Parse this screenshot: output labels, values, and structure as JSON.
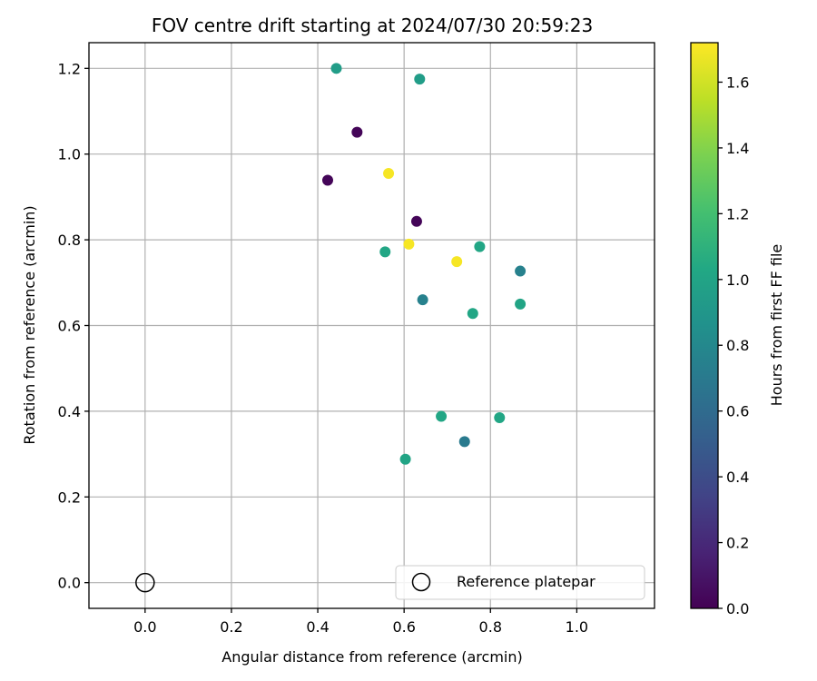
{
  "chart_data": {
    "type": "scatter",
    "title": "FOV centre drift starting at 2024/07/30 20:59:23",
    "xlabel": "Angular distance from reference (arcmin)",
    "ylabel": "Rotation from reference (arcmin)",
    "colorbar_label": "Hours from first FF file",
    "xlim": [
      -0.13,
      1.18
    ],
    "ylim": [
      -0.06,
      1.26
    ],
    "x_ticks": [
      0.0,
      0.2,
      0.4,
      0.6,
      0.8,
      1.0
    ],
    "x_tick_labels": [
      "0.0",
      "0.2",
      "0.4",
      "0.6",
      "0.8",
      "1.0"
    ],
    "y_ticks": [
      0.0,
      0.2,
      0.4,
      0.6,
      0.8,
      1.0,
      1.2
    ],
    "y_tick_labels": [
      "0.0",
      "0.2",
      "0.4",
      "0.6",
      "0.8",
      "1.0",
      "1.2"
    ],
    "colorbar_range": [
      0.0,
      1.72
    ],
    "colorbar_ticks": [
      0.0,
      0.2,
      0.4,
      0.6,
      0.8,
      1.0,
      1.2,
      1.4,
      1.6
    ],
    "colorbar_tick_labels": [
      "0.0",
      "0.2",
      "0.4",
      "0.6",
      "0.8",
      "1.0",
      "1.2",
      "1.4",
      "1.6"
    ],
    "colormap": "viridis",
    "grid": true,
    "legend_placement": "lower-right",
    "legend_label": "Reference platepar",
    "reference_point": {
      "x": 0.0,
      "y": 0.0
    },
    "points": [
      {
        "x": 0.443,
        "y": 1.2,
        "hours": 0.95
      },
      {
        "x": 0.636,
        "y": 1.175,
        "hours": 0.95
      },
      {
        "x": 0.491,
        "y": 1.051,
        "hours": 0.02
      },
      {
        "x": 0.423,
        "y": 0.939,
        "hours": 0.02
      },
      {
        "x": 0.564,
        "y": 0.955,
        "hours": 1.7
      },
      {
        "x": 0.629,
        "y": 0.843,
        "hours": 0.02
      },
      {
        "x": 0.611,
        "y": 0.79,
        "hours": 1.7
      },
      {
        "x": 0.556,
        "y": 0.772,
        "hours": 1.02
      },
      {
        "x": 0.775,
        "y": 0.784,
        "hours": 1.02
      },
      {
        "x": 0.722,
        "y": 0.749,
        "hours": 1.7
      },
      {
        "x": 0.869,
        "y": 0.727,
        "hours": 0.75
      },
      {
        "x": 0.643,
        "y": 0.66,
        "hours": 0.75
      },
      {
        "x": 0.869,
        "y": 0.65,
        "hours": 1.0
      },
      {
        "x": 0.759,
        "y": 0.628,
        "hours": 1.02
      },
      {
        "x": 0.686,
        "y": 0.388,
        "hours": 1.02
      },
      {
        "x": 0.821,
        "y": 0.385,
        "hours": 1.02
      },
      {
        "x": 0.74,
        "y": 0.329,
        "hours": 0.7
      },
      {
        "x": 0.603,
        "y": 0.288,
        "hours": 1.0
      }
    ]
  }
}
